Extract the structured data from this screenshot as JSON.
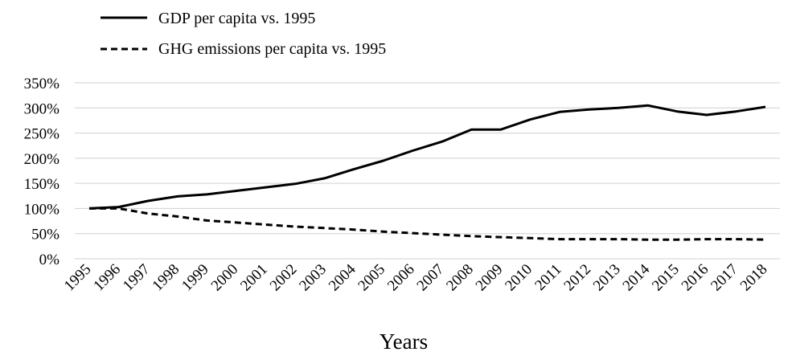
{
  "chart_data": {
    "type": "line",
    "title": "",
    "xlabel": "Years",
    "ylabel": "",
    "x": [
      "1995",
      "1996",
      "1997",
      "1998",
      "1999",
      "2000",
      "2001",
      "2002",
      "2003",
      "2004",
      "2005",
      "2006",
      "2007",
      "2008",
      "2009",
      "2010",
      "2011",
      "2012",
      "2013",
      "2014",
      "2015",
      "2016",
      "2017",
      "2018"
    ],
    "y_tick_labels": [
      "0%",
      "50%",
      "100%",
      "150%",
      "200%",
      "250%",
      "300%",
      "350%"
    ],
    "y_ticks": [
      0,
      50,
      100,
      150,
      200,
      250,
      300,
      350
    ],
    "ylim": [
      0,
      350
    ],
    "grid": "horizontal",
    "legend": "top-left",
    "series": [
      {
        "name": "GDP per capita vs. 1995",
        "style": "solid",
        "color": "#000000",
        "values": [
          100,
          103,
          115,
          124,
          128,
          135,
          142,
          149,
          160,
          178,
          195,
          215,
          233,
          257,
          257,
          277,
          292,
          297,
          300,
          305,
          293,
          286,
          293,
          302
        ]
      },
      {
        "name": "GHG emissions per capita vs. 1995",
        "style": "dashed",
        "color": "#000000",
        "values": [
          100,
          100,
          90,
          84,
          76,
          72,
          68,
          64,
          61,
          58,
          54,
          51,
          48,
          45,
          43,
          41,
          39,
          39,
          39,
          38,
          38,
          39,
          39,
          38
        ]
      }
    ]
  }
}
